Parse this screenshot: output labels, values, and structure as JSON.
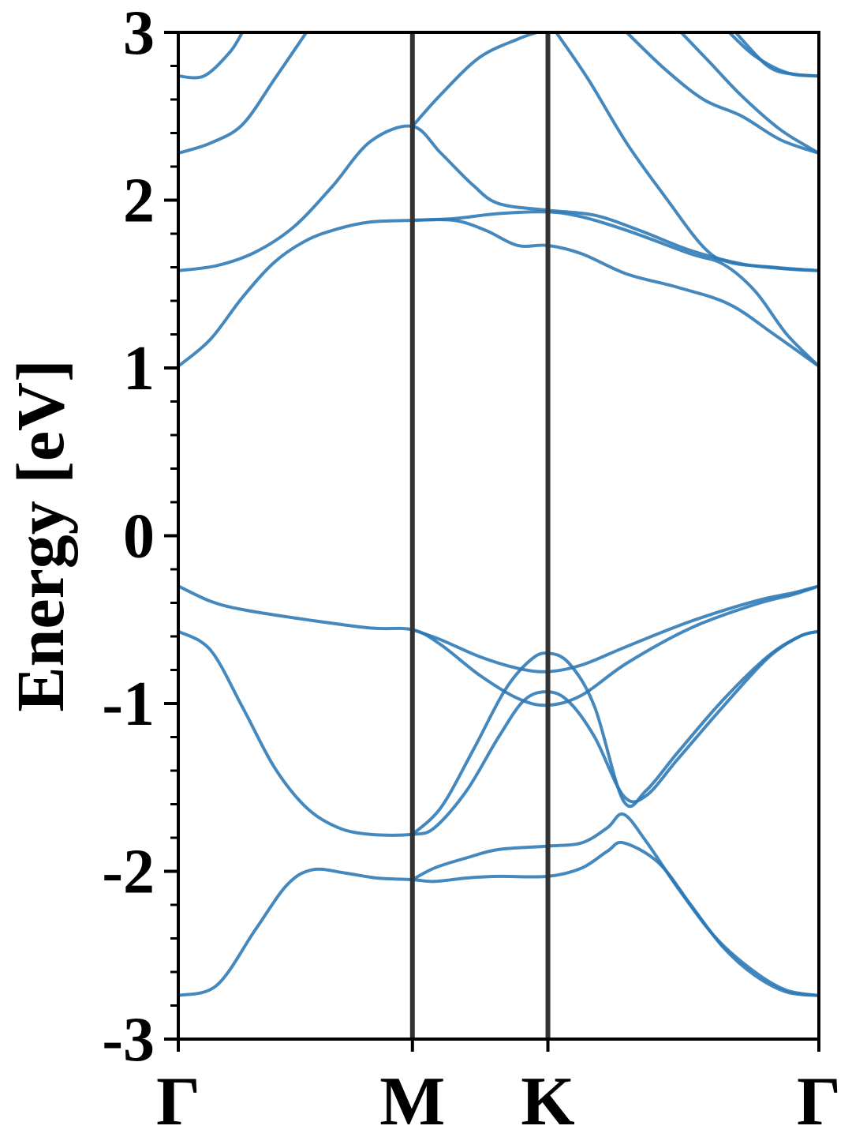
{
  "chart_data": {
    "type": "line",
    "title": "",
    "xlabel": "",
    "ylabel": "Energy [eV]",
    "ylim": [
      -3,
      3
    ],
    "yticks": [
      -3,
      -2,
      -1,
      0,
      1,
      2,
      3
    ],
    "ytick_labels": [
      "-3",
      "-2",
      "-1",
      "0",
      "1",
      "2",
      "3"
    ],
    "x_path_ticks": [
      {
        "label": "Γ",
        "k": 0.0
      },
      {
        "label": "M",
        "k": 0.3655
      },
      {
        "label": "K",
        "k": 0.577
      },
      {
        "label": "Γ",
        "k": 1.0
      }
    ],
    "high_symmetry_lines": [
      "M",
      "K"
    ],
    "grid": false,
    "legend": "none",
    "colors": {
      "bands": "#2a78b5",
      "symmetry_lines": "#333333",
      "axes": "#000000"
    },
    "series": [
      {
        "values": [
          [
            0.0,
            -2.74
          ],
          [
            0.06,
            -2.68
          ],
          [
            0.12,
            -2.35
          ],
          [
            0.17,
            -2.08
          ],
          [
            0.21,
            -1.99
          ],
          [
            0.26,
            -2.01
          ],
          [
            0.31,
            -2.04
          ],
          [
            0.3655,
            -2.05
          ],
          [
            0.4,
            -2.06
          ],
          [
            0.45,
            -2.04
          ],
          [
            0.5,
            -2.03
          ],
          [
            0.577,
            -2.03
          ],
          [
            0.63,
            -1.98
          ],
          [
            0.67,
            -1.88
          ],
          [
            0.695,
            -1.83
          ],
          [
            0.75,
            -1.95
          ],
          [
            0.8,
            -2.2
          ],
          [
            0.85,
            -2.45
          ],
          [
            0.9,
            -2.62
          ],
          [
            0.95,
            -2.72
          ],
          [
            1.0,
            -2.74
          ]
        ]
      },
      {
        "values": [
          [
            0.0,
            -0.57
          ],
          [
            0.05,
            -0.68
          ],
          [
            0.1,
            -1.02
          ],
          [
            0.15,
            -1.38
          ],
          [
            0.2,
            -1.62
          ],
          [
            0.25,
            -1.74
          ],
          [
            0.3,
            -1.78
          ],
          [
            0.3655,
            -1.78
          ],
          [
            0.4,
            -1.74
          ],
          [
            0.45,
            -1.52
          ],
          [
            0.5,
            -1.2
          ],
          [
            0.54,
            -0.98
          ],
          [
            0.577,
            -0.93
          ],
          [
            0.61,
            -0.99
          ],
          [
            0.65,
            -1.2
          ],
          [
            0.695,
            -1.55
          ],
          [
            0.73,
            -1.55
          ],
          [
            0.78,
            -1.33
          ],
          [
            0.85,
            -1.02
          ],
          [
            0.92,
            -0.73
          ],
          [
            0.97,
            -0.6
          ],
          [
            1.0,
            -0.57
          ]
        ]
      },
      {
        "values": [
          [
            0.3655,
            -2.05
          ],
          [
            0.4,
            -1.98
          ],
          [
            0.45,
            -1.92
          ],
          [
            0.5,
            -1.87
          ],
          [
            0.577,
            -1.85
          ],
          [
            0.63,
            -1.83
          ],
          [
            0.67,
            -1.74
          ],
          [
            0.695,
            -1.66
          ],
          [
            0.73,
            -1.82
          ],
          [
            0.78,
            -2.1
          ],
          [
            0.84,
            -2.4
          ],
          [
            0.9,
            -2.6
          ],
          [
            0.95,
            -2.71
          ],
          [
            1.0,
            -2.74
          ]
        ]
      },
      {
        "values": [
          [
            0.3655,
            -1.78
          ],
          [
            0.41,
            -1.62
          ],
          [
            0.46,
            -1.28
          ],
          [
            0.51,
            -0.92
          ],
          [
            0.55,
            -0.74
          ],
          [
            0.577,
            -0.7
          ],
          [
            0.61,
            -0.76
          ],
          [
            0.65,
            -1.02
          ],
          [
            0.695,
            -1.58
          ],
          [
            0.73,
            -1.52
          ],
          [
            0.78,
            -1.29
          ],
          [
            0.85,
            -0.98
          ],
          [
            0.92,
            -0.72
          ],
          [
            0.97,
            -0.6
          ],
          [
            1.0,
            -0.57
          ]
        ]
      },
      {
        "values": [
          [
            0.0,
            -0.3
          ],
          [
            0.05,
            -0.39
          ],
          [
            0.1,
            -0.44
          ],
          [
            0.2,
            -0.5
          ],
          [
            0.3,
            -0.55
          ],
          [
            0.3655,
            -0.56
          ],
          [
            0.41,
            -0.65
          ],
          [
            0.47,
            -0.83
          ],
          [
            0.53,
            -0.97
          ],
          [
            0.577,
            -1.01
          ],
          [
            0.63,
            -0.95
          ],
          [
            0.7,
            -0.76
          ],
          [
            0.8,
            -0.55
          ],
          [
            0.9,
            -0.41
          ],
          [
            0.96,
            -0.35
          ],
          [
            1.0,
            -0.3
          ]
        ]
      },
      {
        "values": [
          [
            0.3655,
            -0.56
          ],
          [
            0.41,
            -0.62
          ],
          [
            0.47,
            -0.72
          ],
          [
            0.53,
            -0.79
          ],
          [
            0.577,
            -0.81
          ],
          [
            0.63,
            -0.77
          ],
          [
            0.7,
            -0.66
          ],
          [
            0.8,
            -0.51
          ],
          [
            0.9,
            -0.39
          ],
          [
            0.96,
            -0.34
          ],
          [
            1.0,
            -0.3
          ]
        ]
      },
      {
        "values": [
          [
            0.0,
            1.01
          ],
          [
            0.05,
            1.17
          ],
          [
            0.1,
            1.42
          ],
          [
            0.15,
            1.63
          ],
          [
            0.2,
            1.76
          ],
          [
            0.25,
            1.83
          ],
          [
            0.3,
            1.87
          ],
          [
            0.3655,
            1.88
          ],
          [
            0.43,
            1.89
          ],
          [
            0.5,
            1.92
          ],
          [
            0.577,
            1.93
          ],
          [
            0.63,
            1.9
          ],
          [
            0.7,
            1.82
          ],
          [
            0.8,
            1.68
          ],
          [
            0.85,
            1.62
          ],
          [
            0.9,
            1.46
          ],
          [
            0.95,
            1.2
          ],
          [
            1.0,
            1.01
          ]
        ]
      },
      {
        "values": [
          [
            0.0,
            1.58
          ],
          [
            0.06,
            1.61
          ],
          [
            0.12,
            1.69
          ],
          [
            0.18,
            1.84
          ],
          [
            0.24,
            2.08
          ],
          [
            0.3,
            2.35
          ],
          [
            0.3655,
            2.44
          ],
          [
            0.41,
            2.28
          ],
          [
            0.46,
            2.09
          ],
          [
            0.5,
            1.98
          ],
          [
            0.577,
            1.94
          ],
          [
            0.65,
            1.91
          ],
          [
            0.72,
            1.82
          ],
          [
            0.8,
            1.7
          ],
          [
            0.88,
            1.62
          ],
          [
            0.95,
            1.59
          ],
          [
            1.0,
            1.58
          ]
        ]
      },
      {
        "values": [
          [
            0.3655,
            1.88
          ],
          [
            0.43,
            1.88
          ],
          [
            0.48,
            1.82
          ],
          [
            0.53,
            1.73
          ],
          [
            0.577,
            1.73
          ],
          [
            0.63,
            1.68
          ],
          [
            0.7,
            1.56
          ],
          [
            0.78,
            1.48
          ],
          [
            0.86,
            1.38
          ],
          [
            0.93,
            1.2
          ],
          [
            1.0,
            1.01
          ]
        ]
      },
      {
        "values": [
          [
            0.0,
            2.28
          ],
          [
            0.05,
            2.34
          ],
          [
            0.1,
            2.45
          ],
          [
            0.15,
            2.72
          ],
          [
            0.2,
            3.0
          ]
        ]
      },
      {
        "values": [
          [
            0.0,
            2.74
          ],
          [
            0.04,
            2.74
          ],
          [
            0.08,
            2.88
          ],
          [
            0.1,
            3.0
          ]
        ]
      },
      {
        "values": [
          [
            0.3655,
            2.44
          ],
          [
            0.41,
            2.63
          ],
          [
            0.47,
            2.85
          ],
          [
            0.53,
            2.96
          ],
          [
            0.56,
            3.0
          ]
        ]
      },
      {
        "values": [
          [
            0.59,
            3.0
          ],
          [
            0.64,
            2.72
          ],
          [
            0.7,
            2.34
          ],
          [
            0.76,
            2.02
          ],
          [
            0.82,
            1.72
          ],
          [
            0.86,
            1.63
          ],
          [
            0.93,
            1.6
          ],
          [
            1.0,
            1.58
          ]
        ]
      },
      {
        "values": [
          [
            0.7,
            3.0
          ],
          [
            0.76,
            2.78
          ],
          [
            0.82,
            2.6
          ],
          [
            0.88,
            2.5
          ],
          [
            0.94,
            2.36
          ],
          [
            1.0,
            2.28
          ]
        ]
      },
      {
        "values": [
          [
            0.785,
            3.0
          ],
          [
            0.83,
            2.82
          ],
          [
            0.88,
            2.62
          ],
          [
            0.94,
            2.42
          ],
          [
            1.0,
            2.28
          ]
        ]
      },
      {
        "values": [
          [
            0.86,
            3.0
          ],
          [
            0.9,
            2.86
          ],
          [
            0.95,
            2.76
          ],
          [
            1.0,
            2.74
          ]
        ]
      },
      {
        "values": [
          [
            0.87,
            3.0
          ],
          [
            0.92,
            2.8
          ],
          [
            0.96,
            2.75
          ],
          [
            1.0,
            2.74
          ]
        ]
      }
    ]
  }
}
